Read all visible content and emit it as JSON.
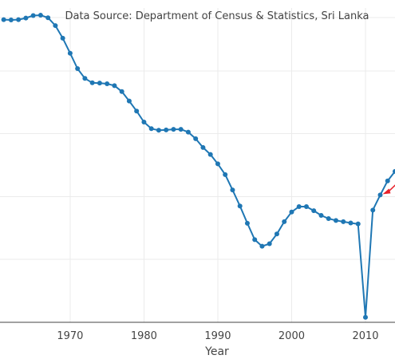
{
  "chart_data": {
    "type": "line",
    "annotation": "Data Source: Department of Census & Statistics, Sri Lanka",
    "xlabel": "Year",
    "ylabel": "",
    "x_ticks": [
      1970,
      1980,
      1990,
      2000,
      2010
    ],
    "xlim": [
      1960.5,
      2014
    ],
    "ylim": [
      0,
      1
    ],
    "y_grid_values": [
      0.2,
      0.4,
      0.6,
      0.8,
      0.97
    ],
    "grid": true,
    "colors": {
      "series": "#1f77b4",
      "annotation_arrow": "#e8212a"
    },
    "series": [
      {
        "x": [
          1961,
          1962,
          1963,
          1964,
          1965,
          1966,
          1967,
          1968,
          1969,
          1970,
          1971,
          1972,
          1973,
          1974,
          1975,
          1976,
          1977,
          1978,
          1979,
          1980,
          1981,
          1982,
          1983,
          1984,
          1985,
          1986,
          1987,
          1988,
          1989,
          1990,
          1991,
          1992,
          1993,
          1994,
          1995,
          1996,
          1997,
          1998,
          1999,
          2000,
          2001,
          2002,
          2003,
          2004,
          2005,
          2006,
          2007,
          2008,
          2009,
          2010,
          2011,
          2012,
          2013,
          2014
        ],
        "y": [
          0.963,
          0.962,
          0.963,
          0.968,
          0.976,
          0.977,
          0.969,
          0.944,
          0.904,
          0.856,
          0.807,
          0.776,
          0.762,
          0.761,
          0.759,
          0.753,
          0.734,
          0.704,
          0.672,
          0.637,
          0.616,
          0.611,
          0.612,
          0.614,
          0.614,
          0.605,
          0.584,
          0.556,
          0.534,
          0.504,
          0.47,
          0.421,
          0.37,
          0.315,
          0.263,
          0.242,
          0.25,
          0.281,
          0.32,
          0.351,
          0.368,
          0.368,
          0.355,
          0.34,
          0.33,
          0.324,
          0.32,
          0.316,
          0.313,
          0.016,
          0.357,
          0.405,
          0.45,
          0.48
        ]
      }
    ]
  }
}
